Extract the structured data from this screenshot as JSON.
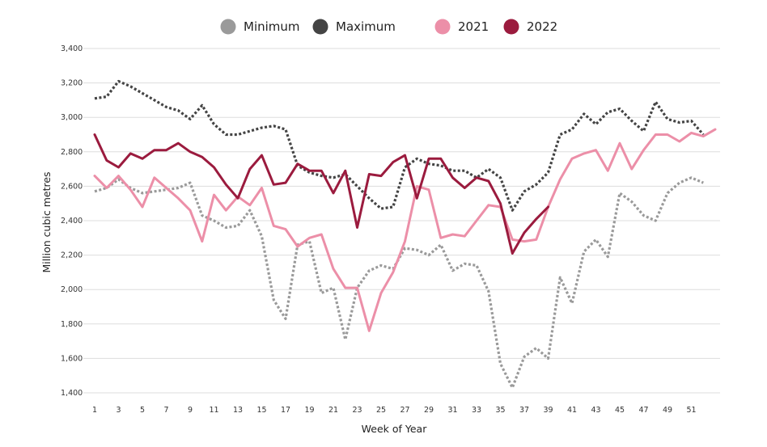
{
  "chart_data": {
    "type": "line",
    "xlabel": "Week of Year",
    "ylabel": "Million cubic metres",
    "xlim": [
      1,
      53
    ],
    "ylim": [
      1400,
      3400
    ],
    "x_ticks": [
      1,
      3,
      5,
      7,
      9,
      11,
      13,
      15,
      17,
      19,
      21,
      23,
      25,
      27,
      29,
      31,
      33,
      35,
      37,
      39,
      41,
      43,
      45,
      47,
      49,
      51
    ],
    "y_ticks": [
      1400,
      1600,
      1800,
      2000,
      2200,
      2400,
      2600,
      2800,
      3000,
      3200,
      3400
    ],
    "y_tick_labels": [
      "1,400",
      "1,600",
      "1,800",
      "2,000",
      "2,200",
      "2,400",
      "2,600",
      "2,800",
      "3,000",
      "3,200",
      "3,400"
    ],
    "grid": "horizontal",
    "legend_position": "top",
    "series": [
      {
        "name": "Minimum",
        "color": "#9a9a9a",
        "style": "dotted",
        "x": [
          1,
          2,
          3,
          4,
          5,
          6,
          7,
          8,
          9,
          10,
          11,
          12,
          13,
          14,
          15,
          16,
          17,
          18,
          19,
          20,
          21,
          22,
          23,
          24,
          25,
          26,
          27,
          28,
          29,
          30,
          31,
          32,
          33,
          34,
          35,
          36,
          37,
          38,
          39,
          40,
          41,
          42,
          43,
          44,
          45,
          46,
          47,
          48,
          49,
          50,
          51,
          52
        ],
        "values": [
          2570,
          2590,
          2640,
          2590,
          2560,
          2570,
          2580,
          2590,
          2620,
          2430,
          2400,
          2360,
          2370,
          2460,
          2310,
          1940,
          1830,
          2260,
          2280,
          1980,
          2010,
          1710,
          2010,
          2110,
          2140,
          2120,
          2240,
          2230,
          2200,
          2260,
          2110,
          2150,
          2140,
          1990,
          1570,
          1430,
          1610,
          1660,
          1600,
          2070,
          1920,
          2220,
          2290,
          2190,
          2560,
          2510,
          2430,
          2400,
          2560,
          2620,
          2650,
          2620
        ]
      },
      {
        "name": "Maximum",
        "color": "#444444",
        "style": "dotted",
        "x": [
          1,
          2,
          3,
          4,
          5,
          6,
          7,
          8,
          9,
          10,
          11,
          12,
          13,
          14,
          15,
          16,
          17,
          18,
          19,
          20,
          21,
          22,
          23,
          24,
          25,
          26,
          27,
          28,
          29,
          30,
          31,
          32,
          33,
          34,
          35,
          36,
          37,
          38,
          39,
          40,
          41,
          42,
          43,
          44,
          45,
          46,
          47,
          48,
          49,
          50,
          51,
          52
        ],
        "values": [
          3110,
          3120,
          3210,
          3180,
          3140,
          3100,
          3060,
          3040,
          2990,
          3070,
          2960,
          2900,
          2900,
          2920,
          2940,
          2950,
          2930,
          2720,
          2680,
          2660,
          2650,
          2670,
          2600,
          2530,
          2470,
          2480,
          2710,
          2760,
          2730,
          2720,
          2690,
          2690,
          2650,
          2700,
          2650,
          2460,
          2570,
          2610,
          2680,
          2900,
          2930,
          3020,
          2960,
          3030,
          3050,
          2980,
          2920,
          3090,
          2990,
          2970,
          2980,
          2900
        ]
      },
      {
        "name": "2021",
        "color": "#ec8fa8",
        "style": "solid",
        "x": [
          1,
          2,
          3,
          4,
          5,
          6,
          7,
          8,
          9,
          10,
          11,
          12,
          13,
          14,
          15,
          16,
          17,
          18,
          19,
          20,
          21,
          22,
          23,
          24,
          25,
          26,
          27,
          28,
          29,
          30,
          31,
          32,
          33,
          34,
          35,
          36,
          37,
          38,
          39,
          40,
          41,
          42,
          43,
          44,
          45,
          46,
          47,
          48,
          49,
          50,
          51,
          52,
          53
        ],
        "values": [
          2660,
          2590,
          2660,
          2580,
          2480,
          2650,
          2590,
          2530,
          2460,
          2280,
          2550,
          2460,
          2540,
          2490,
          2590,
          2370,
          2350,
          2250,
          2300,
          2320,
          2120,
          2010,
          2010,
          1760,
          1980,
          2100,
          2280,
          2600,
          2580,
          2300,
          2320,
          2310,
          2400,
          2490,
          2480,
          2290,
          2280,
          2290,
          2480,
          2640,
          2760,
          2790,
          2810,
          2690,
          2850,
          2700,
          2810,
          2900,
          2900,
          2860,
          2910,
          2890,
          2930
        ]
      },
      {
        "name": "2022",
        "color": "#9b1b3e",
        "style": "solid",
        "x": [
          1,
          2,
          3,
          4,
          5,
          6,
          7,
          8,
          9,
          10,
          11,
          12,
          13,
          14,
          15,
          16,
          17,
          18,
          19,
          20,
          21,
          22,
          23,
          24,
          25,
          26,
          27,
          28,
          29,
          30,
          31,
          32,
          33,
          34,
          35,
          36,
          37,
          38,
          39
        ],
        "values": [
          2900,
          2750,
          2710,
          2790,
          2760,
          2810,
          2810,
          2850,
          2800,
          2770,
          2710,
          2610,
          2530,
          2700,
          2780,
          2610,
          2620,
          2730,
          2690,
          2690,
          2560,
          2690,
          2360,
          2670,
          2660,
          2740,
          2780,
          2530,
          2760,
          2760,
          2650,
          2590,
          2650,
          2630,
          2500,
          2210,
          2330,
          2410,
          2480
        ]
      }
    ]
  }
}
